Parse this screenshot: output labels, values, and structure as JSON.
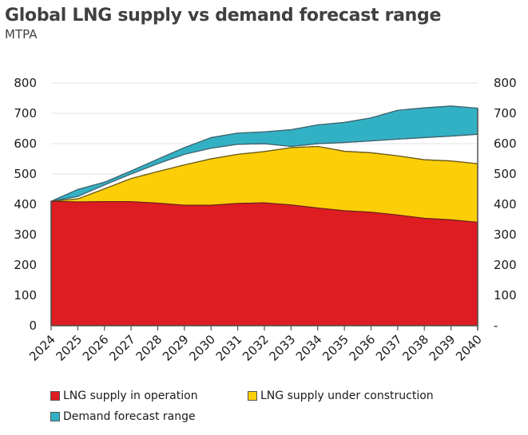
{
  "chart_data": {
    "type": "area",
    "title": "Global LNG supply vs demand forecast range",
    "subtitle": "MTPA",
    "xlabel": "",
    "ylabel": "MTPA",
    "ylim": [
      0,
      800
    ],
    "y_ticks_left": [
      "0",
      "100",
      "200",
      "300",
      "400",
      "500",
      "600",
      "700",
      "800"
    ],
    "y_ticks_right": [
      "-",
      "100",
      "200",
      "300",
      "400",
      "500",
      "600",
      "700",
      "800"
    ],
    "grid": true,
    "legend_position": "bottom",
    "x": [
      "2024",
      "2025",
      "2026",
      "2027",
      "2028",
      "2029",
      "2030",
      "2031",
      "2032",
      "2033",
      "2034",
      "2035",
      "2036",
      "2037",
      "2038",
      "2039",
      "2040"
    ],
    "series": [
      {
        "name": "LNG supply in operation",
        "kind": "stacked-cumulative-top",
        "color": "#DD1D21",
        "values": [
          410,
          408,
          409,
          409,
          404,
          397,
          397,
          403,
          405,
          398,
          388,
          379,
          374,
          365,
          354,
          349,
          341
        ]
      },
      {
        "name": "LNG supply under construction",
        "kind": "cumulative-total-top",
        "color": "#FBCE07",
        "values": [
          410,
          418,
          451,
          485,
          508,
          530,
          550,
          565,
          574,
          587,
          591,
          575,
          570,
          560,
          547,
          543,
          534
        ]
      },
      {
        "name": "Demand forecast range",
        "kind": "band",
        "color": "#33B1C4",
        "overlap_color": "#2EA99A",
        "lower": [
          410,
          426,
          464,
          500,
          534,
          565,
          585,
          598,
          600,
          591,
          600,
          604,
          609,
          615,
          620,
          625,
          631
        ],
        "upper": [
          410,
          449,
          473,
          510,
          549,
          587,
          620,
          635,
          639,
          646,
          662,
          670,
          685,
          710,
          718,
          724,
          717
        ]
      }
    ]
  },
  "legend": [
    {
      "label": "LNG supply in operation",
      "color": "#DD1D21"
    },
    {
      "label": "LNG supply under construction",
      "color": "#FBCE07"
    },
    {
      "label": "Demand forecast range",
      "color": "#33B1C4"
    }
  ]
}
